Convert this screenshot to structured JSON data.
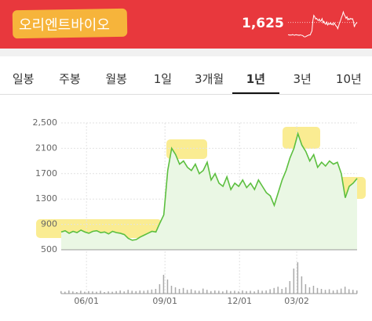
{
  "header": {
    "title": "오리엔트바이오",
    "price": "1,625"
  },
  "tabs": [
    "일봉",
    "주봉",
    "월봉",
    "1일",
    "3개월",
    "1년",
    "3년",
    "10년"
  ],
  "selected_tab": 5,
  "chart_data": {
    "type": "line",
    "color": "#5cbf3f",
    "values": [
      780,
      800,
      760,
      790,
      770,
      810,
      780,
      760,
      790,
      800,
      770,
      780,
      750,
      790,
      770,
      760,
      740,
      680,
      650,
      660,
      700,
      730,
      760,
      790,
      780,
      920,
      1050,
      1750,
      2100,
      2000,
      1850,
      1900,
      1800,
      1750,
      1850,
      1700,
      1750,
      1880,
      1600,
      1700,
      1550,
      1500,
      1650,
      1450,
      1550,
      1500,
      1600,
      1480,
      1550,
      1450,
      1600,
      1500,
      1400,
      1350,
      1200,
      1400,
      1600,
      1750,
      1950,
      2100,
      2330,
      2150,
      2050,
      1900,
      2000,
      1800,
      1880,
      1820,
      1900,
      1850,
      1880,
      1700,
      1320,
      1500,
      1550,
      1625
    ],
    "volume": [
      8,
      6,
      10,
      7,
      5,
      9,
      6,
      8,
      7,
      6,
      9,
      5,
      7,
      6,
      8,
      10,
      7,
      12,
      9,
      8,
      10,
      9,
      11,
      13,
      15,
      30,
      60,
      45,
      25,
      20,
      15,
      18,
      12,
      14,
      10,
      9,
      16,
      12,
      8,
      10,
      9,
      7,
      11,
      8,
      9,
      7,
      10,
      8,
      9,
      7,
      12,
      9,
      10,
      14,
      18,
      22,
      15,
      20,
      40,
      80,
      100,
      55,
      30,
      20,
      25,
      18,
      15,
      12,
      14,
      10,
      12,
      16,
      22,
      14,
      12,
      10
    ],
    "ylim": [
      500,
      2500
    ],
    "yticks": [
      500,
      900,
      1300,
      1700,
      2100,
      {
        "value": 2500,
        "label": "2,500"
      }
    ],
    "xlim": [
      0,
      75
    ],
    "xticks": [
      {
        "value": 6.4,
        "label": "06/01"
      },
      {
        "value": 26.3,
        "label": "09/01"
      },
      {
        "value": 45.2,
        "label": "12/01"
      },
      {
        "value": 59.7,
        "label": "03/02"
      }
    ],
    "grid": true
  }
}
